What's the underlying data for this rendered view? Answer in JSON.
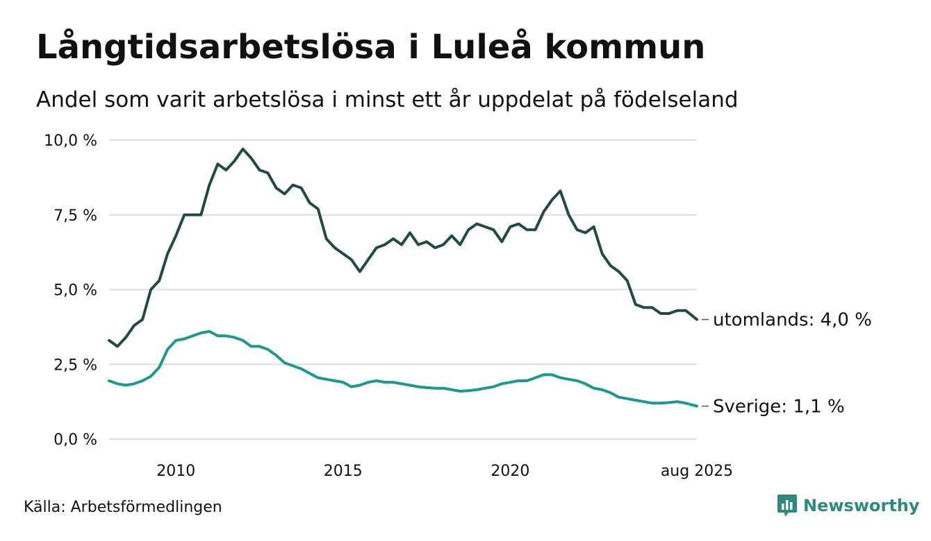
{
  "title": "Långtidsarbetslösa i Luleå kommun",
  "subtitle": "Andel som varit arbetslösa i minst ett år uppdelat på födelseland",
  "source": "Källa: Arbetsförmedlingen",
  "brand": {
    "name": "Newsworthy",
    "icon": "newsworthy-logo-icon",
    "color": "#2e8a7c"
  },
  "colors": {
    "utomlands": "#1f4a45",
    "sverige": "#1a9a8c",
    "grid": "#dddddd"
  },
  "chart_data": {
    "type": "line",
    "title": "Långtidsarbetslösa i Luleå kommun",
    "subtitle": "Andel som varit arbetslösa i minst ett år uppdelat på födelseland",
    "xlabel": "",
    "ylabel": "",
    "xlim": [
      "2008-01",
      "2025-08"
    ],
    "ylim": [
      0,
      10
    ],
    "y_ticks": [
      0,
      2.5,
      5,
      7.5,
      10
    ],
    "y_tick_labels": [
      "0,0 %",
      "2,5 %",
      "5,0 %",
      "7,5 %",
      "10,0 %"
    ],
    "x_ticks": [
      "2010-01",
      "2015-01",
      "2020-01",
      "2025-08"
    ],
    "x_tick_labels": [
      "2010",
      "2015",
      "2020",
      "aug 2025"
    ],
    "grid": true,
    "legend": "end-labels",
    "series": [
      {
        "key": "utomlands",
        "label": "utomlands: 4,0 %",
        "x": [
          "2008-01",
          "2008-04",
          "2008-07",
          "2008-10",
          "2009-01",
          "2009-04",
          "2009-07",
          "2009-10",
          "2010-01",
          "2010-04",
          "2010-07",
          "2010-10",
          "2011-01",
          "2011-04",
          "2011-07",
          "2011-10",
          "2012-01",
          "2012-04",
          "2012-07",
          "2012-10",
          "2013-01",
          "2013-04",
          "2013-07",
          "2013-10",
          "2014-01",
          "2014-04",
          "2014-07",
          "2014-10",
          "2015-01",
          "2015-04",
          "2015-07",
          "2015-10",
          "2016-01",
          "2016-04",
          "2016-07",
          "2016-10",
          "2017-01",
          "2017-04",
          "2017-07",
          "2017-10",
          "2018-01",
          "2018-04",
          "2018-07",
          "2018-10",
          "2019-01",
          "2019-04",
          "2019-07",
          "2019-10",
          "2020-01",
          "2020-04",
          "2020-07",
          "2020-10",
          "2021-01",
          "2021-04",
          "2021-07",
          "2021-10",
          "2022-01",
          "2022-04",
          "2022-07",
          "2022-10",
          "2023-01",
          "2023-04",
          "2023-07",
          "2023-10",
          "2024-01",
          "2024-04",
          "2024-07",
          "2024-10",
          "2025-01",
          "2025-04",
          "2025-08"
        ],
        "values": [
          3.3,
          3.1,
          3.4,
          3.8,
          4.0,
          5.0,
          5.3,
          6.2,
          6.8,
          7.5,
          7.5,
          7.5,
          8.5,
          9.2,
          9.0,
          9.3,
          9.7,
          9.4,
          9.0,
          8.9,
          8.4,
          8.2,
          8.5,
          8.4,
          7.9,
          7.7,
          6.7,
          6.4,
          6.2,
          6.0,
          5.6,
          6.0,
          6.4,
          6.5,
          6.7,
          6.5,
          6.9,
          6.5,
          6.6,
          6.4,
          6.5,
          6.8,
          6.5,
          7.0,
          7.2,
          7.1,
          7.0,
          6.6,
          7.1,
          7.2,
          7.0,
          7.0,
          7.6,
          8.0,
          8.3,
          7.5,
          7.0,
          6.9,
          7.1,
          6.2,
          5.8,
          5.6,
          5.3,
          4.5,
          4.4,
          4.4,
          4.2,
          4.2,
          4.3,
          4.3,
          4.0
        ]
      },
      {
        "key": "sverige",
        "label": "Sverige: 1,1 %",
        "x": [
          "2008-01",
          "2008-04",
          "2008-07",
          "2008-10",
          "2009-01",
          "2009-04",
          "2009-07",
          "2009-10",
          "2010-01",
          "2010-04",
          "2010-07",
          "2010-10",
          "2011-01",
          "2011-04",
          "2011-07",
          "2011-10",
          "2012-01",
          "2012-04",
          "2012-07",
          "2012-10",
          "2013-01",
          "2013-04",
          "2013-07",
          "2013-10",
          "2014-01",
          "2014-04",
          "2014-07",
          "2014-10",
          "2015-01",
          "2015-04",
          "2015-07",
          "2015-10",
          "2016-01",
          "2016-04",
          "2016-07",
          "2016-10",
          "2017-01",
          "2017-04",
          "2017-07",
          "2017-10",
          "2018-01",
          "2018-04",
          "2018-07",
          "2018-10",
          "2019-01",
          "2019-04",
          "2019-07",
          "2019-10",
          "2020-01",
          "2020-04",
          "2020-07",
          "2020-10",
          "2021-01",
          "2021-04",
          "2021-07",
          "2021-10",
          "2022-01",
          "2022-04",
          "2022-07",
          "2022-10",
          "2023-01",
          "2023-04",
          "2023-07",
          "2023-10",
          "2024-01",
          "2024-04",
          "2024-07",
          "2024-10",
          "2025-01",
          "2025-04",
          "2025-08"
        ],
        "values": [
          1.95,
          1.85,
          1.8,
          1.85,
          1.95,
          2.1,
          2.4,
          3.0,
          3.3,
          3.35,
          3.45,
          3.55,
          3.6,
          3.45,
          3.45,
          3.4,
          3.3,
          3.1,
          3.1,
          3.0,
          2.8,
          2.55,
          2.45,
          2.35,
          2.2,
          2.05,
          2.0,
          1.95,
          1.9,
          1.75,
          1.8,
          1.9,
          1.95,
          1.9,
          1.9,
          1.85,
          1.8,
          1.75,
          1.72,
          1.7,
          1.7,
          1.65,
          1.6,
          1.62,
          1.65,
          1.7,
          1.75,
          1.85,
          1.9,
          1.95,
          1.95,
          2.05,
          2.15,
          2.15,
          2.05,
          2.0,
          1.95,
          1.85,
          1.7,
          1.65,
          1.55,
          1.4,
          1.35,
          1.3,
          1.25,
          1.2,
          1.2,
          1.22,
          1.25,
          1.2,
          1.1
        ]
      }
    ]
  }
}
